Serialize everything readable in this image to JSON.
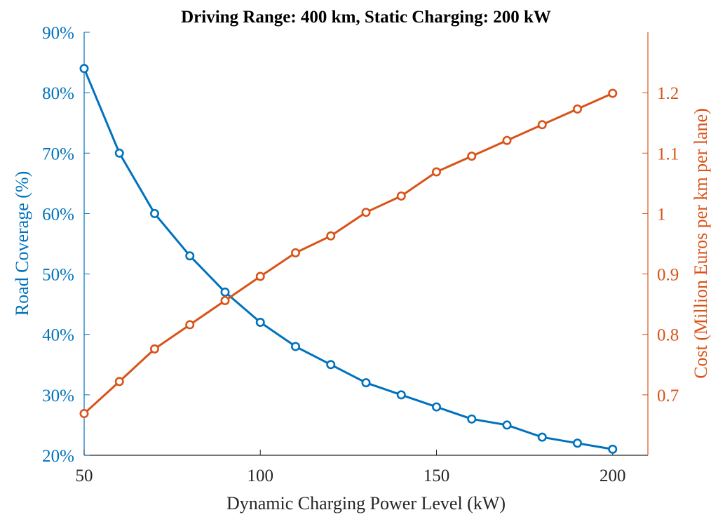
{
  "chart_data": {
    "type": "line",
    "title": "Driving Range: 400 km, Static Charging: 200 kW",
    "xlabel": "Dynamic Charging Power Level (kW)",
    "ylabel_left": "Road Coverage (%)",
    "ylabel_right": "Cost (Million Euros per km per lane)",
    "xlim": [
      50,
      210
    ],
    "ylim_left": [
      20,
      90
    ],
    "ylim_right": [
      0.6,
      1.3
    ],
    "x": [
      50,
      60,
      70,
      80,
      90,
      100,
      110,
      120,
      130,
      140,
      150,
      160,
      170,
      180,
      190,
      200
    ],
    "x_ticks": [
      50,
      100,
      150,
      200
    ],
    "x_tick_labels": [
      "50",
      "100",
      "150",
      "200"
    ],
    "y_left_ticks": [
      20,
      30,
      40,
      50,
      60,
      70,
      80,
      90
    ],
    "y_left_tick_labels": [
      "20%",
      "30%",
      "40%",
      "50%",
      "60%",
      "70%",
      "80%",
      "90%"
    ],
    "y_right_ticks": [
      0.7,
      0.8,
      0.9,
      1.0,
      1.1,
      1.2
    ],
    "y_right_tick_labels": [
      "0.7",
      "0.8",
      "0.9",
      "1",
      "1.1",
      "1.2"
    ],
    "series": [
      {
        "name": "Road Coverage",
        "axis": "left",
        "color": "#0072BD",
        "marker": "circle",
        "values": [
          84,
          70,
          60,
          53,
          47,
          42,
          38,
          35,
          32,
          30,
          28,
          26,
          25,
          23,
          22,
          21
        ]
      },
      {
        "name": "Cost",
        "axis": "right",
        "color": "#D95319",
        "marker": "circle",
        "values": [
          0.669,
          0.722,
          0.776,
          0.816,
          0.856,
          0.896,
          0.935,
          0.963,
          1.002,
          1.029,
          1.069,
          1.095,
          1.121,
          1.147,
          1.173,
          1.199
        ]
      }
    ]
  }
}
